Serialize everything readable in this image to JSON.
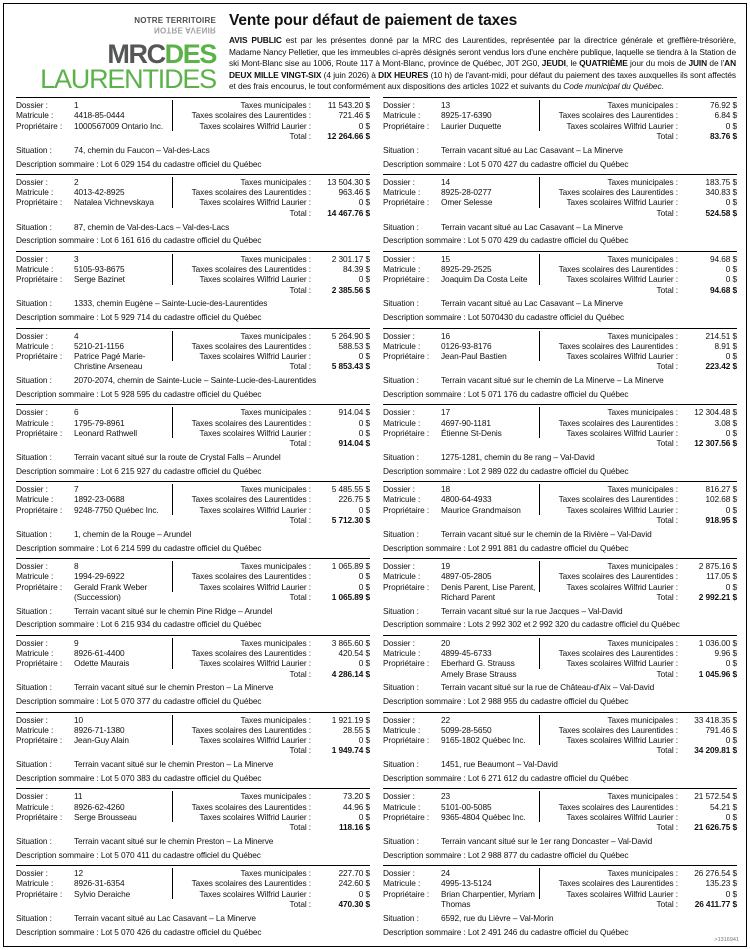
{
  "logo": {
    "tagline_top": "NOTRE TERRITOIRE",
    "tagline_reflected": "NOTRE AVENIR",
    "name_part1": "MRC",
    "name_part2": "DES",
    "name_part3": "LAURENTIDES",
    "green": "#5bb248",
    "gray": "#555658"
  },
  "header": {
    "title": "Vente pour défaut de paiement de taxes",
    "notice_segments": [
      {
        "text": "AVIS PUBLIC",
        "bold": true
      },
      {
        "text": " est par les présentes donné par la MRC des Laurentides, représentée par la directrice générale et greffière-trésorière, Madame Nancy Pelletier, que les immeubles ci-après désignés seront vendus lors d'une enchère publique, laquelle se tiendra à la Station de ski Mont-Blanc sise au 1006, Route 117 à Mont-Blanc, province de Québec, J0T 2G0, "
      },
      {
        "text": "JEUDI",
        "bold": true
      },
      {
        "text": ", le "
      },
      {
        "text": "QUATRIÈME",
        "bold": true
      },
      {
        "text": " jour du mois de "
      },
      {
        "text": "JUIN",
        "bold": true
      },
      {
        "text": " de l'"
      },
      {
        "text": "AN DEUX MILLE VINGT-SIX",
        "bold": true
      },
      {
        "text": " (4 juin 2026) à "
      },
      {
        "text": "DIX HEURES",
        "bold": true
      },
      {
        "text": " (10 h) de l'avant-midi, pour défaut du paiement des taxes auxquelles ils sont affectés et des frais encourus, le tout conformément aux dispositions des articles 1022 et suivants du "
      },
      {
        "text": "Code municipal du Québec",
        "italic": true
      },
      {
        "text": "."
      }
    ]
  },
  "labels": {
    "dossier": "Dossier :",
    "matricule": "Matricule :",
    "proprietaire": "Propriétaire :",
    "taxes_municipales": "Taxes municipales :",
    "taxes_laurentides": "Taxes scolaires des Laurentides :",
    "taxes_wilfrid": "Taxes scolaires Wilfrid Laurier :",
    "total": "Total :",
    "situation": "Situation :",
    "description": "Description sommaire :"
  },
  "footer_code": ">1316941",
  "columns": {
    "left": [
      {
        "dossier": "1",
        "matricule": "4418-85-0444",
        "proprietaire": "1000567009 Ontario Inc.",
        "taxes_municipales": "11 543.20 $",
        "taxes_laurentides": "721.46 $",
        "taxes_wilfrid": "0 $",
        "total": "12 264.66 $",
        "situation": "74, chemin du Faucon – Val-des-Lacs",
        "description": "Lot 6 029 154 du cadastre officiel du Québec"
      },
      {
        "dossier": "2",
        "matricule": "4013-42-8925",
        "proprietaire": "Natalea Vichnevskaya",
        "taxes_municipales": "13 504.30 $",
        "taxes_laurentides": "963.46 $",
        "taxes_wilfrid": "0 $",
        "total": "14 467.76 $",
        "situation": "87, chemin de Val-des-Lacs – Val-des-Lacs",
        "description": "Lot 6 161 616 du cadastre officiel du Québec"
      },
      {
        "dossier": "3",
        "matricule": "5105-93-8675",
        "proprietaire": "Serge Bazinet",
        "taxes_municipales": "2 301.17 $",
        "taxes_laurentides": "84.39 $",
        "taxes_wilfrid": "0 $",
        "total": "2 385.56 $",
        "situation": "1333, chemin Eugène – Sainte-Lucie-des-Laurentides",
        "description": "Lot 5 929 714 du cadastre officiel du Québec"
      },
      {
        "dossier": "4",
        "matricule": "5210-21-1156",
        "proprietaire": "Patrice Pagé Marie-Christine Arseneau",
        "taxes_municipales": "5 264.90 $",
        "taxes_laurentides": "588.53 $",
        "taxes_wilfrid": "0 $",
        "total": "5 853.43 $",
        "situation": "2070-2074, chemin de Sainte-Lucie – Sainte-Lucie-des-Laurentides",
        "description": "Lot 5 928 595 du cadastre officiel du Québec"
      },
      {
        "dossier": "6",
        "matricule": "1795-79-8961",
        "proprietaire": "Leonard Rathwell",
        "taxes_municipales": "914.04 $",
        "taxes_laurentides": "0 $",
        "taxes_wilfrid": "0 $",
        "total": "914.04 $",
        "situation": "Terrain vacant situé sur la route de Crystal Falls – Arundel",
        "description": "Lot 6 215 927 du cadastre officiel du Québec"
      },
      {
        "dossier": "7",
        "matricule": "1892-23-0688",
        "proprietaire": "9248-7750 Québec Inc.",
        "taxes_municipales": "5 485.55 $",
        "taxes_laurentides": "226.75 $",
        "taxes_wilfrid": "0 $",
        "total": "5 712.30 $",
        "situation": "1, chemin de la Rouge – Arundel",
        "description": "Lot 6 214 599 du cadastre officiel du Québec"
      },
      {
        "dossier": "8",
        "matricule": "1994-29-6922",
        "proprietaire": "Gerald Frank Weber (Succession)",
        "taxes_municipales": "1 065.89 $",
        "taxes_laurentides": "0 $",
        "taxes_wilfrid": "0 $",
        "total": "1 065.89 $",
        "situation": "Terrain vacant situé sur le chemin Pine Ridge – Arundel",
        "description": "Lot 6 215 934 du cadastre officiel du Québec"
      },
      {
        "dossier": "9",
        "matricule": "8926-61-4400",
        "proprietaire": "Odette Maurais",
        "taxes_municipales": "3 865.60 $",
        "taxes_laurentides": "420.54 $",
        "taxes_wilfrid": "0 $",
        "total": "4 286.14 $",
        "situation": "Terrain vacant situé sur le chemin Preston – La Minerve",
        "description": "Lot 5 070 377 du cadastre officiel du Québec"
      },
      {
        "dossier": "10",
        "matricule": "8926-71-1380",
        "proprietaire": "Jean-Guy Alain",
        "taxes_municipales": "1 921.19 $",
        "taxes_laurentides": "28.55 $",
        "taxes_wilfrid": "0 $",
        "total": "1 949.74 $",
        "situation": "Terrain vacant situé sur le chemin Preston – La Minerve",
        "description": "Lot 5 070 383 du cadastre officiel du Québec"
      },
      {
        "dossier": "11",
        "matricule": "8926-62-4260",
        "proprietaire": "Serge Brousseau",
        "taxes_municipales": "73.20 $",
        "taxes_laurentides": "44.96 $",
        "taxes_wilfrid": "0 $",
        "total": "118.16 $",
        "situation": "Terrain vacant situé sur le chemin Preston – La Minerve",
        "description": "Lot 5 070 411 du cadastre officiel du Québec"
      },
      {
        "dossier": "12",
        "matricule": "8926-31-6354",
        "proprietaire": "Sylvio Deraiche",
        "taxes_municipales": "227.70 $",
        "taxes_laurentides": "242.60 $",
        "taxes_wilfrid": "0 $",
        "total": "470.30 $",
        "situation": "Terrain vacant situé au Lac Casavant – La Minerve",
        "description": "Lot 5 070 426 du cadastre officiel du Québec"
      }
    ],
    "right": [
      {
        "dossier": "13",
        "matricule": "8925-17-6390",
        "proprietaire": "Laurier Duquette",
        "taxes_municipales": "76.92 $",
        "taxes_laurentides": "6.84 $",
        "taxes_wilfrid": "0 $",
        "total": "83.76 $",
        "situation": "Terrain vacant situé au Lac Casavant – La Minerve",
        "description": "Lot 5 070 427 du cadastre officiel du Québec"
      },
      {
        "dossier": "14",
        "matricule": "8925-28-0277",
        "proprietaire": "Omer Selesse",
        "taxes_municipales": "183.75 $",
        "taxes_laurentides": "340.83 $",
        "taxes_wilfrid": "0 $",
        "total": "524.58 $",
        "situation": "Terrain vacant situé au Lac Casavant – La Minerve",
        "description": "Lot 5 070 429 du cadastre officiel du Québec"
      },
      {
        "dossier": "15",
        "matricule": "8925-29-2525",
        "proprietaire": "Joaquim Da Costa Leite",
        "taxes_municipales": "94.68 $",
        "taxes_laurentides": "0 $",
        "taxes_wilfrid": "0 $",
        "total": "94.68 $",
        "situation": "Terrain vacant situé au Lac Casavant – La Minerve",
        "description": "Lot 5070430 du cadastre officiel du Québec"
      },
      {
        "dossier": "16",
        "matricule": "0126-93-8176",
        "proprietaire": "Jean-Paul Bastien",
        "taxes_municipales": "214.51 $",
        "taxes_laurentides": "8.91 $",
        "taxes_wilfrid": "0 $",
        "total": "223.42 $",
        "situation": "Terrain vacant situé sur le chemin de La Minerve – La Minerve",
        "description": "Lot 5 071 176 du cadastre officiel du Québec"
      },
      {
        "dossier": "17",
        "matricule": "4697-90-1181",
        "proprietaire": "Étienne St-Denis",
        "taxes_municipales": "12 304.48 $",
        "taxes_laurentides": "3.08 $",
        "taxes_wilfrid": "0 $",
        "total": "12 307.56 $",
        "situation": "1275-1281, chemin du 8e rang – Val-David",
        "description": "Lot 2 989 022 du cadastre officiel du Québec"
      },
      {
        "dossier": "18",
        "matricule": "4800-64-4933",
        "proprietaire": "Maurice Grandmaison",
        "taxes_municipales": "816.27 $",
        "taxes_laurentides": "102.68 $",
        "taxes_wilfrid": "0 $",
        "total": "918.95 $",
        "situation": "Terrain vacant situé sur le chemin de la Rivière – Val-David",
        "description": "Lot 2 991 881 du cadastre officiel du Québec"
      },
      {
        "dossier": "19",
        "matricule": "4897-05-2805",
        "proprietaire": "Denis Parent, Lise Parent, Richard Parent",
        "taxes_municipales": "2 875.16 $",
        "taxes_laurentides": "117.05 $",
        "taxes_wilfrid": "0 $",
        "total": "2 992.21 $",
        "situation": "Terrain vacant situé sur la rue Jacques – Val-David",
        "description": "Lots 2 992 302 et 2 992 320 du cadastre officiel du Québec"
      },
      {
        "dossier": "20",
        "matricule": "4899-45-6733",
        "proprietaire": "Eberhard G. Strauss Amely Brase Strauss",
        "taxes_municipales": "1 036.00 $",
        "taxes_laurentides": "9.96 $",
        "taxes_wilfrid": "0 $",
        "total": "1 045.96 $",
        "situation": "Terrain vacant situé sur la rue de Château-d'Aix – Val-David",
        "description": "Lot 2 988 955 du cadastre officiel du Québec"
      },
      {
        "dossier": "22",
        "matricule": "5099-28-5650",
        "proprietaire": "9165-1802 Québec Inc.",
        "taxes_municipales": "33 418.35 $",
        "taxes_laurentides": "791.46 $",
        "taxes_wilfrid": "0 $",
        "total": "34 209.81 $",
        "situation": "1451, rue Beaumont – Val-David",
        "description": "Lot 6 271 612 du cadastre officiel du Québec"
      },
      {
        "dossier": "23",
        "matricule": "5101-00-5085",
        "proprietaire": "9365-4804 Québec Inc.",
        "taxes_municipales": "21 572.54 $",
        "taxes_laurentides": "54.21 $",
        "taxes_wilfrid": "0 $",
        "total": "21 626.75 $",
        "situation": "Terrain vancant situé sur le 1er rang Doncaster – Val-David",
        "description": "Lot 2 988 877 du cadastre officiel du Québec"
      },
      {
        "dossier": "24",
        "matricule": "4995-13-5124",
        "proprietaire": "Brian Charpentier, Myriam Thomas",
        "taxes_municipales": "26 276.54 $",
        "taxes_laurentides": "135.23 $",
        "taxes_wilfrid": "0 $",
        "total": "26 411.77 $",
        "situation": "6592, rue du Lièvre – Val-Morin",
        "description": "Lot 2 491 246 du cadastre officiel du Québec"
      }
    ]
  }
}
